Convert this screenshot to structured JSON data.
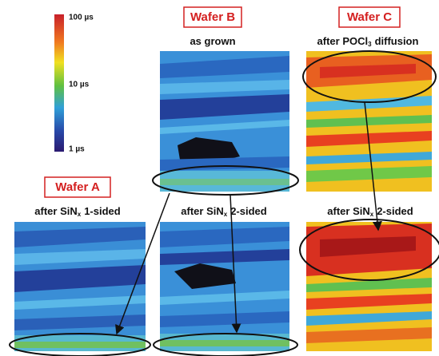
{
  "colorbar": {
    "labels": [
      "100 µs",
      "10 µs",
      "1 µs"
    ]
  },
  "wafers": [
    {
      "label": "Wafer A",
      "panels": [
        {
          "caption": {
            "main": "after SiN",
            "sub": "x",
            "rest": "1-sided"
          }
        }
      ]
    },
    {
      "label": "Wafer B",
      "panels": [
        {
          "caption": {
            "main": "as grown"
          }
        },
        {
          "caption": {
            "main": "after SiN",
            "sub": "x",
            "rest": "2-sided"
          }
        }
      ]
    },
    {
      "label": "Wafer C",
      "panels": [
        {
          "caption": {
            "main": "after POCl",
            "sub": "3",
            "rest": "diffusion"
          }
        },
        {
          "caption": {
            "main": "after SiN",
            "sub": "x",
            "rest": "2-sided"
          }
        }
      ]
    }
  ]
}
